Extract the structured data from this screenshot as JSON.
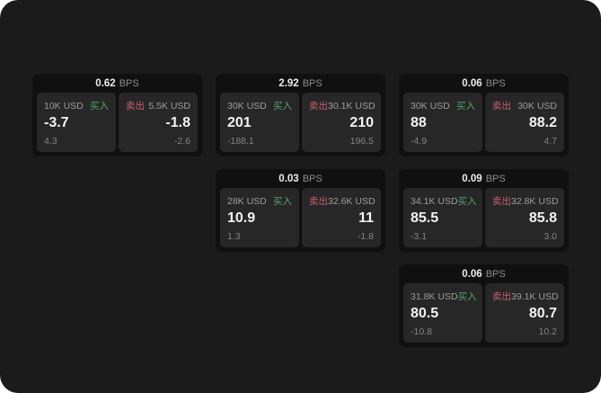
{
  "labels": {
    "buy": "买入",
    "sell": "卖出",
    "bps": "BPS"
  },
  "colors": {
    "buy": "#56a36d",
    "sell": "#c75f70",
    "canvas_bg": "#1b1b1b",
    "card_bg": "#101010",
    "panel_bg": "#272727",
    "value_text": "#f3f3f3",
    "muted_text": "#9c9c9c"
  },
  "cards": [
    {
      "bps": "0.62",
      "row": 1,
      "col": 1,
      "buy": {
        "amount": "10K USD",
        "value": "-3.7",
        "sub": "4.3"
      },
      "sell": {
        "amount": "5.5K USD",
        "value": "-1.8",
        "sub": "-2.6"
      }
    },
    {
      "bps": "2.92",
      "row": 1,
      "col": 2,
      "buy": {
        "amount": "30K USD",
        "value": "201",
        "sub": "-188.1"
      },
      "sell": {
        "amount": "30.1K USD",
        "value": "210",
        "sub": "196.5"
      }
    },
    {
      "bps": "0.06",
      "row": 1,
      "col": 3,
      "buy": {
        "amount": "30K USD",
        "value": "88",
        "sub": "-4.9"
      },
      "sell": {
        "amount": "30K USD",
        "value": "88.2",
        "sub": "4.7"
      }
    },
    {
      "bps": "0.03",
      "row": 2,
      "col": 2,
      "buy": {
        "amount": "28K USD",
        "value": "10.9",
        "sub": "1.3"
      },
      "sell": {
        "amount": "32.6K USD",
        "value": "11",
        "sub": "-1.8"
      }
    },
    {
      "bps": "0.09",
      "row": 2,
      "col": 3,
      "buy": {
        "amount": "34.1K USD",
        "value": "85.5",
        "sub": "-3.1"
      },
      "sell": {
        "amount": "32.8K USD",
        "value": "85.8",
        "sub": "3.0"
      }
    },
    {
      "bps": "0.06",
      "row": 3,
      "col": 3,
      "buy": {
        "amount": "31.8K USD",
        "value": "80.5",
        "sub": "-10.8"
      },
      "sell": {
        "amount": "39.1K USD",
        "value": "80.7",
        "sub": "10.2"
      }
    }
  ]
}
